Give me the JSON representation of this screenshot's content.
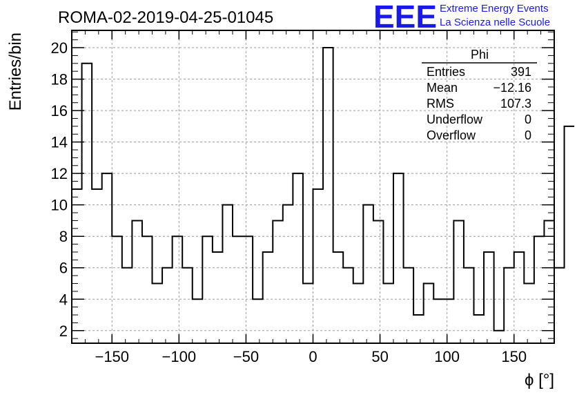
{
  "header": {
    "run_title": "ROMA-02-2019-04-25-01045",
    "logo_mark": "EEE",
    "logo_line1": "Extreme Energy Events",
    "logo_line2": "La Scienza nelle Scuole"
  },
  "stats_box": {
    "title": "Phi",
    "rows": [
      {
        "label": "Entries",
        "value": "391"
      },
      {
        "label": "Mean",
        "value": "−12.16"
      },
      {
        "label": "RMS",
        "value": "107.3"
      },
      {
        "label": "Underflow",
        "value": "0"
      },
      {
        "label": "Overflow",
        "value": "0"
      }
    ]
  },
  "colors": {
    "logo": "#1a1ae6",
    "line": "#000000",
    "grid": "#9a9a9a"
  },
  "chart_data": {
    "type": "bar",
    "histogram_style": "step",
    "xlabel": "ϕ [°]",
    "ylabel": "Entries/bin",
    "xlim": [
      -180,
      180
    ],
    "ylim": [
      1.2,
      21.1
    ],
    "grid": true,
    "x_ticks": [
      -150,
      -100,
      -50,
      0,
      50,
      100,
      150
    ],
    "x_tick_labels": [
      "−150",
      "−100",
      "−50",
      "0",
      "50",
      "100",
      "150"
    ],
    "y_ticks": [
      2,
      4,
      6,
      8,
      10,
      12,
      14,
      16,
      18,
      20
    ],
    "y_tick_labels": [
      "2",
      "4",
      "6",
      "8",
      "10",
      "12",
      "14",
      "16",
      "18",
      "20"
    ],
    "bin_edges_start": -180,
    "bin_width": 7.5,
    "values": [
      11,
      19,
      11,
      12,
      8,
      6,
      9,
      8,
      5,
      6,
      8,
      6,
      4,
      8,
      7,
      10,
      8,
      8,
      4,
      7,
      9,
      10,
      12,
      5,
      11,
      20,
      7,
      6,
      5,
      10,
      9,
      5,
      12,
      6,
      3,
      5,
      4,
      4,
      9,
      6,
      3,
      7,
      2,
      6,
      7,
      5,
      8,
      9,
      6,
      15
    ]
  }
}
